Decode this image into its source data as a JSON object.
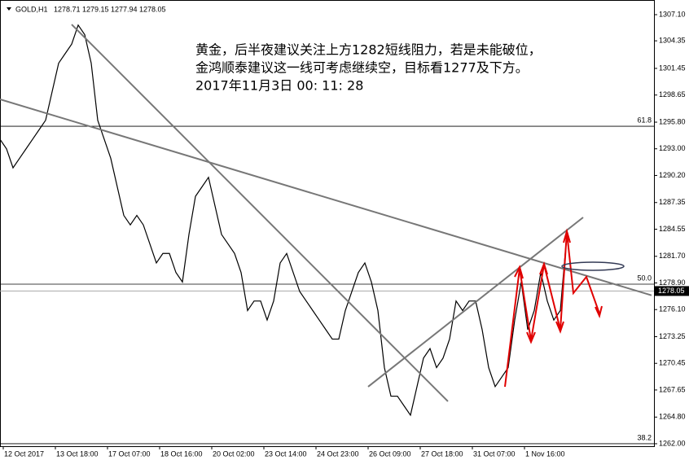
{
  "chart_data": {
    "type": "line",
    "symbol": "GOLD,H1",
    "ohlc": [
      1278.71,
      1279.15,
      1277.94,
      1278.05
    ],
    "annotation": [
      "黄金，后半夜建议关注上方1282短线阻力，若是未能破位，",
      "金鸿顺泰建议这一线可考虑继续空，目标看1277及下方。",
      "2017年11月3日  00: 11: 28"
    ],
    "x_labels": [
      "12 Oct 2017",
      "13 Oct 18:00",
      "17 Oct 07:00",
      "18 Oct 16:00",
      "20 Oct 02:00",
      "23 Oct 14:00",
      "24 Oct 23:00",
      "26 Oct 09:00",
      "27 Oct 18:00",
      "31 Oct 07:00",
      "1 Nov 16:00"
    ],
    "values": [
      1294,
      1293,
      1291,
      1292,
      1293,
      1294,
      1295,
      1296,
      1299,
      1302,
      1303,
      1304,
      1306,
      1305,
      1302,
      1296,
      1294,
      1292,
      1289,
      1286,
      1285,
      1286,
      1285,
      1283,
      1281,
      1282,
      1282,
      1280,
      1279,
      1284,
      1288,
      1289,
      1290,
      1287,
      1284,
      1283,
      1282,
      1280,
      1276,
      1277,
      1277,
      1275,
      1277,
      1281,
      1282,
      1280,
      1278,
      1277,
      1276,
      1275,
      1274,
      1273,
      1273,
      1276,
      1278,
      1280,
      1281,
      1279,
      1276,
      1270,
      1267,
      1267,
      1266,
      1265,
      1268,
      1271,
      1272,
      1270,
      1271,
      1273,
      1277,
      1276,
      1277,
      1277,
      1274,
      1270,
      1268,
      1269,
      1270,
      1275,
      1279,
      1274,
      1276,
      1280,
      1277,
      1275,
      1276,
      1284,
      1278
    ],
    "color": "#000000",
    "ylim": [
      1261.74,
      1308.64
    ],
    "yticks": [
      {
        "value": 1307.1,
        "label": "1307.10"
      },
      1304.35,
      1301.45,
      1298.65,
      {
        "value": 1295.8,
        "label": "1295.80"
      },
      {
        "value": 1293,
        "label": "1293.00"
      },
      {
        "value": 1290.2,
        "label": "1290.20"
      },
      1287.35,
      1284.55,
      {
        "value": 1281.7,
        "label": "1281.70"
      },
      {
        "value": 1278.9,
        "label": "1278.90"
      },
      {
        "value": 1276.1,
        "label": "1276.10"
      },
      1273.25,
      1270.45,
      1267.65,
      {
        "value": 1264.8,
        "label": "1264.80"
      },
      {
        "value": 1262,
        "label": "1262.00"
      }
    ],
    "last": 1278.05,
    "levels": [
      {
        "ratio": 61.8,
        "price": 1295.37
      },
      {
        "ratio": {
          "value": 50,
          "label": "50.0"
        },
        "price": 1278.77
      },
      {
        "ratio": 38.2,
        "price": 1262.0
      }
    ],
    "trend_lines": [
      {
        "x": [
          0,
          100
        ],
        "y": [
          1298.2,
          1277.6
        ]
      },
      {
        "x": [
          11,
          68.75
        ],
        "y": [
          1306.07,
          1266.45
        ]
      },
      {
        "x": [
          56.5,
          89.5
        ],
        "y": [
          1267.99,
          1285.79
        ]
      }
    ]
  }
}
